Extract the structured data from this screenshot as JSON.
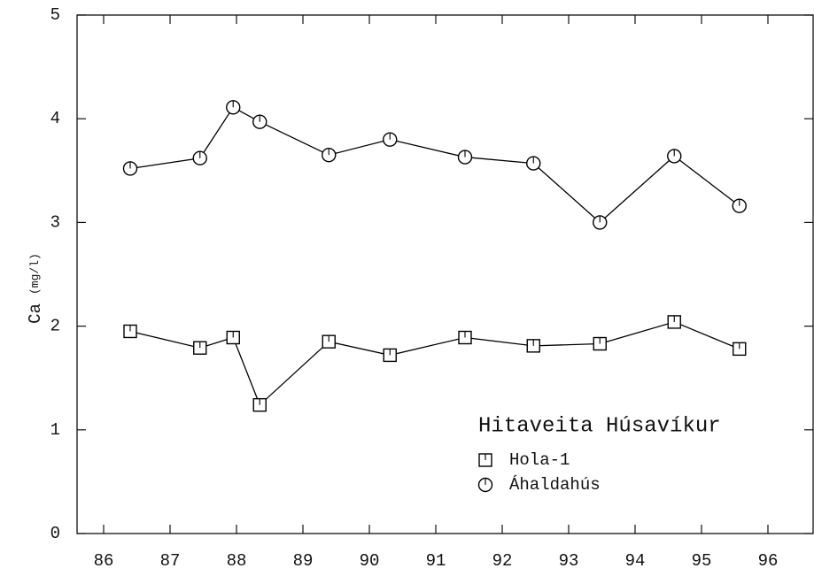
{
  "chart_data": {
    "type": "line",
    "ylabel": "Ca",
    "ylabel_unit": "(mg/l)",
    "legend_title": "Hitaveita Húsavíkur",
    "x": [
      86.4,
      87.45,
      87.95,
      88.35,
      89.39,
      90.31,
      91.44,
      92.47,
      93.47,
      94.59,
      95.57
    ],
    "series": [
      {
        "name": "Hola-1",
        "marker": "square",
        "color": "#000000",
        "values": [
          1.95,
          1.79,
          1.89,
          1.24,
          1.85,
          1.72,
          1.89,
          1.81,
          1.83,
          2.04,
          1.78
        ]
      },
      {
        "name": "Áhaldahús",
        "marker": "circle",
        "color": "#000000",
        "values": [
          3.52,
          3.62,
          4.11,
          3.97,
          3.65,
          3.8,
          3.63,
          3.57,
          3.0,
          3.64,
          3.16
        ]
      }
    ],
    "xlim": [
      85.6,
      96.68
    ],
    "xticks": [
      86,
      87,
      88,
      89,
      90,
      91,
      92,
      93,
      94,
      95,
      96
    ],
    "ylim": [
      0,
      5
    ],
    "yticks": [
      0,
      1,
      2,
      3,
      4,
      5
    ]
  }
}
